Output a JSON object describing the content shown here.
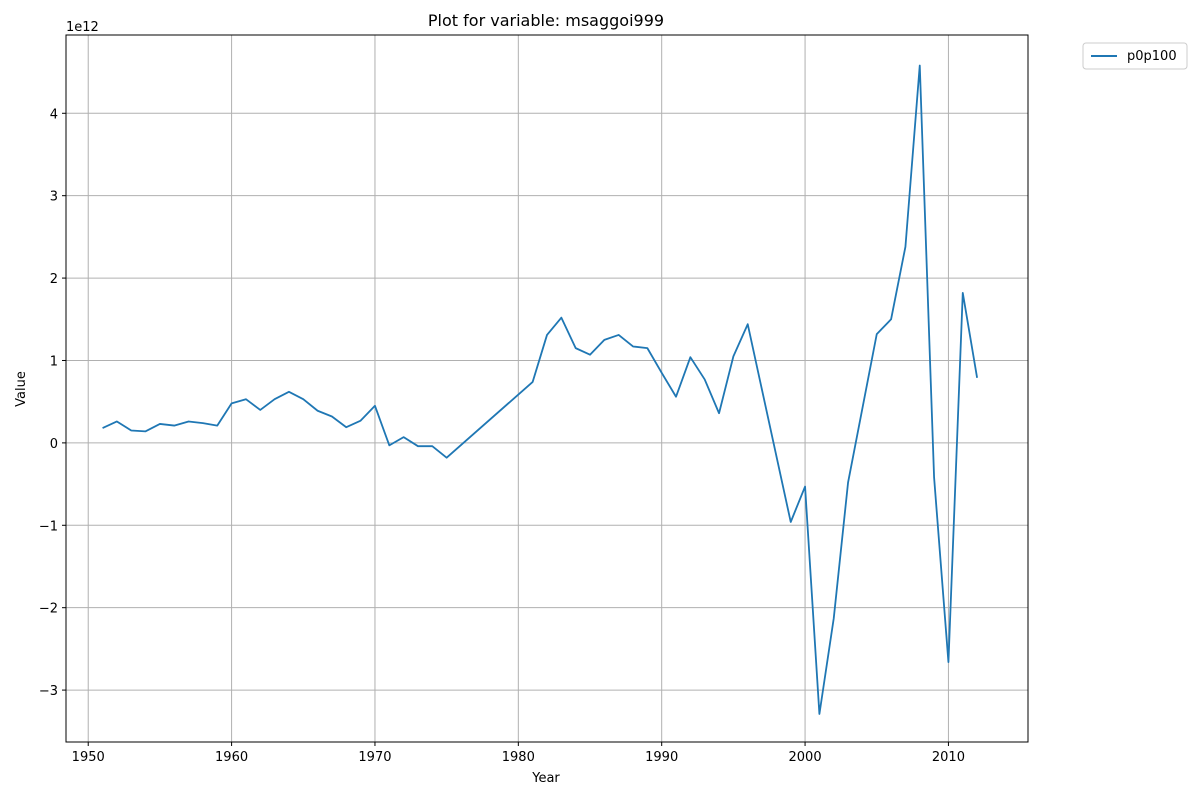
{
  "chart_data": {
    "type": "line",
    "title": "Plot for variable: msaggoi999",
    "xlabel": "Year",
    "ylabel": "Value",
    "y_offset_text": "1e12",
    "y_scale_factor": 1000000000000.0,
    "xlim": [
      1948.45,
      2015.55
    ],
    "ylim": [
      -3.63,
      4.95
    ],
    "x_ticks": [
      1950,
      1960,
      1970,
      1980,
      1990,
      2000,
      2010
    ],
    "y_ticks": [
      -3,
      -2,
      -1,
      0,
      1,
      2,
      3,
      4
    ],
    "grid": true,
    "legend_position": "outside-top-right",
    "line_color": "#1f77b4",
    "x": [
      1951,
      1952,
      1953,
      1954,
      1955,
      1956,
      1957,
      1958,
      1959,
      1960,
      1961,
      1962,
      1963,
      1964,
      1965,
      1966,
      1967,
      1968,
      1969,
      1970,
      1971,
      1972,
      1973,
      1974,
      1975,
      1981,
      1982,
      1983,
      1984,
      1985,
      1986,
      1987,
      1988,
      1989,
      1990,
      1991,
      1992,
      1993,
      1994,
      1995,
      1996,
      1999,
      2000,
      2001,
      2002,
      2003,
      2005,
      2006,
      2007,
      2008,
      2009,
      2010,
      2011,
      2012
    ],
    "series": [
      {
        "name": "p0p100",
        "values": [
          0.18,
          0.26,
          0.15,
          0.14,
          0.23,
          0.21,
          0.26,
          0.24,
          0.21,
          0.48,
          0.53,
          0.4,
          0.53,
          0.62,
          0.53,
          0.39,
          0.32,
          0.19,
          0.27,
          0.45,
          -0.03,
          0.07,
          -0.04,
          -0.04,
          -0.18,
          0.74,
          1.31,
          1.52,
          1.15,
          1.07,
          1.25,
          1.31,
          1.17,
          1.15,
          0.85,
          0.56,
          1.04,
          0.77,
          0.36,
          1.05,
          1.44,
          -0.96,
          -0.53,
          -3.29,
          -2.13,
          -0.48,
          1.32,
          1.5,
          2.38,
          4.58,
          -0.42,
          -2.66,
          1.82,
          0.79
        ]
      }
    ]
  }
}
